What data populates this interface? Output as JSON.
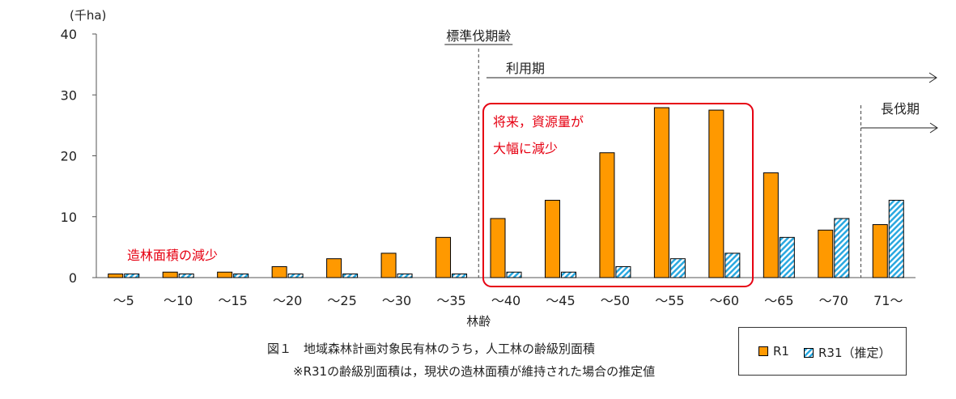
{
  "chart_data": {
    "type": "bar",
    "unit": "(千ha)",
    "xlabel": "林齢",
    "ylim": [
      0,
      40
    ],
    "yticks": [
      0,
      10,
      20,
      30,
      40
    ],
    "categories": [
      "～5",
      "～10",
      "～15",
      "～20",
      "～25",
      "～30",
      "～35",
      "～40",
      "～45",
      "～50",
      "～55",
      "～60",
      "～65",
      "～70",
      "71～"
    ],
    "series": [
      {
        "name": "R1",
        "color": "#ff9900",
        "values": [
          0.6,
          0.9,
          0.9,
          1.8,
          3.1,
          4.0,
          6.6,
          9.7,
          12.7,
          20.5,
          27.9,
          27.5,
          17.2,
          7.8,
          8.7
        ]
      },
      {
        "name": "R31（推定）",
        "color": "#29a8e0",
        "values": [
          0.6,
          0.6,
          0.6,
          0.6,
          0.6,
          0.6,
          0.6,
          0.9,
          0.9,
          1.8,
          3.1,
          4.0,
          6.6,
          9.7,
          12.7
        ]
      }
    ],
    "annotations": {
      "standard_cut_age": "標準伐期齢",
      "utilization_period": "利用期",
      "long_cut_period": "長伐期",
      "future_decline_line1": "将来，資源量が",
      "future_decline_line2": "大幅に減少",
      "planting_decline": "造林面積の減少"
    }
  },
  "caption": {
    "line1": "図１　地域森林計画対象民有林のうち，人工林の齢級別面積",
    "line2": "※R31の齢級別面積は，現状の造林面積が維持された場合の推定値"
  },
  "legend": {
    "r1_label": "R1",
    "r31_label": "R31（推定）"
  }
}
